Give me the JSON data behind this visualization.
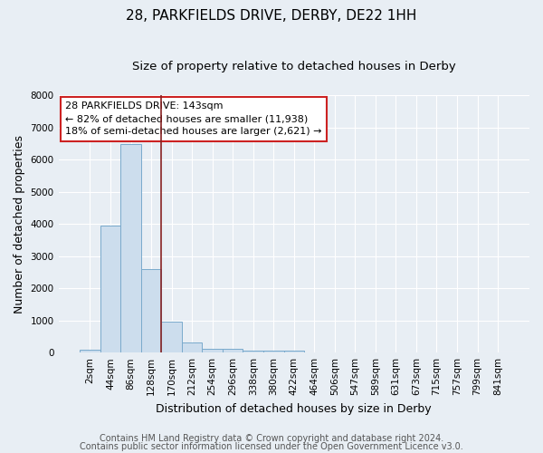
{
  "title": "28, PARKFIELDS DRIVE, DERBY, DE22 1HH",
  "subtitle": "Size of property relative to detached houses in Derby",
  "xlabel": "Distribution of detached houses by size in Derby",
  "ylabel": "Number of detached properties",
  "footnote1": "Contains HM Land Registry data © Crown copyright and database right 2024.",
  "footnote2": "Contains public sector information licensed under the Open Government Licence v3.0.",
  "annotation_line1": "28 PARKFIELDS DRIVE: 143sqm",
  "annotation_line2": "← 82% of detached houses are smaller (11,938)",
  "annotation_line3": "18% of semi-detached houses are larger (2,621) →",
  "bar_labels": [
    "2sqm",
    "44sqm",
    "86sqm",
    "128sqm",
    "170sqm",
    "212sqm",
    "254sqm",
    "296sqm",
    "338sqm",
    "380sqm",
    "422sqm",
    "464sqm",
    "506sqm",
    "547sqm",
    "589sqm",
    "631sqm",
    "673sqm",
    "715sqm",
    "757sqm",
    "799sqm",
    "841sqm"
  ],
  "bar_values": [
    80,
    3950,
    6500,
    2600,
    950,
    320,
    130,
    110,
    75,
    55,
    65,
    0,
    0,
    0,
    0,
    0,
    0,
    0,
    0,
    0,
    0
  ],
  "bar_color": "#ccdded",
  "bar_edge_color": "#7aaacc",
  "red_line_x": 3.5,
  "ylim": [
    0,
    8000
  ],
  "yticks": [
    0,
    1000,
    2000,
    3000,
    4000,
    5000,
    6000,
    7000,
    8000
  ],
  "background_color": "#e8eef4",
  "plot_bg_color": "#e8eef4",
  "grid_color": "#ffffff",
  "annotation_box_color": "#ffffff",
  "annotation_box_edge": "#cc2222",
  "red_line_color": "#882222",
  "title_fontsize": 11,
  "subtitle_fontsize": 9.5,
  "axis_label_fontsize": 9,
  "tick_fontsize": 7.5,
  "annotation_fontsize": 8,
  "footnote_fontsize": 7
}
